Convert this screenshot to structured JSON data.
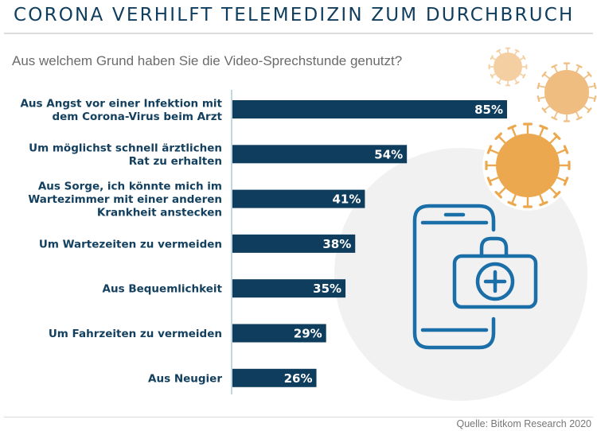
{
  "header": {
    "title": "CORONA VERHILFT TELEMEDIZIN ZUM DURCHBRUCH",
    "subtitle": "Aus welchem Grund haben Sie die Video-Sprechstunde genutzt?"
  },
  "footer": {
    "source": "Quelle: Bitkom Research 2020"
  },
  "colors": {
    "bar": "#0f3d5e",
    "title": "#0f3d5e",
    "virus_light": "#f3cfa2",
    "virus_mid": "#efbd7f",
    "virus_dark": "#eba84f",
    "icon_blue": "#1b6fa8",
    "circle_bg": "#f1f1f1"
  },
  "illustration": {
    "icons": [
      "virus-icon",
      "virus-icon",
      "virus-icon",
      "smartphone-icon",
      "medical-bag-icon",
      "plus-icon"
    ]
  },
  "chart_data": {
    "type": "bar",
    "orientation": "horizontal",
    "title": "Aus welchem Grund haben Sie die Video-Sprechstunde genutzt?",
    "xlabel": "",
    "ylabel": "",
    "unit": "%",
    "xlim": [
      0,
      100
    ],
    "grid": false,
    "categories": [
      [
        "Aus Angst vor einer Infektion mit",
        "dem Corona-Virus beim Arzt"
      ],
      [
        "Um möglichst schnell ärztlichen",
        "Rat zu erhalten"
      ],
      [
        "Aus Sorge, ich könnte mich im",
        "Wartezimmer mit einer anderen",
        "Krankheit anstecken"
      ],
      [
        "Um Wartezeiten zu vermeiden"
      ],
      [
        "Aus Bequemlichkeit"
      ],
      [
        "Um Fahrzeiten zu vermeiden"
      ],
      [
        "Aus Neugier"
      ]
    ],
    "values": [
      85,
      54,
      41,
      38,
      35,
      29,
      26
    ],
    "value_labels": [
      "85%",
      "54%",
      "41%",
      "38%",
      "35%",
      "29%",
      "26%"
    ]
  }
}
